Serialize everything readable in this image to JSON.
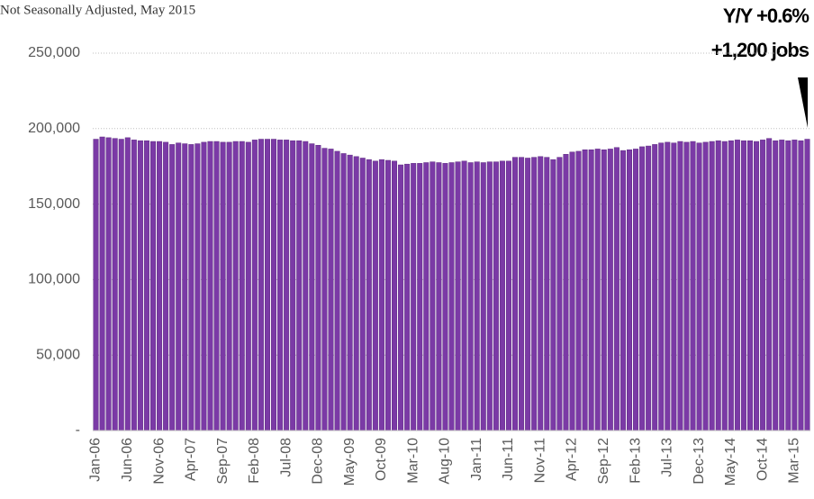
{
  "chart_data": {
    "type": "bar",
    "subtitle": "Not Seasonally Adjusted, May 2015",
    "annotations": [
      "Y/Y  +0.6%",
      "+1,200 jobs"
    ],
    "categories": [
      "Jan-06",
      null,
      null,
      null,
      null,
      "Jun-06",
      null,
      null,
      null,
      null,
      "Nov-06",
      null,
      null,
      null,
      null,
      "Apr-07",
      null,
      null,
      null,
      null,
      "Sep-07",
      null,
      null,
      null,
      null,
      "Feb-08",
      null,
      null,
      null,
      null,
      "Jul-08",
      null,
      null,
      null,
      null,
      "Dec-08",
      null,
      null,
      null,
      null,
      "May-09",
      null,
      null,
      null,
      null,
      "Oct-09",
      null,
      null,
      null,
      null,
      "Mar-10",
      null,
      null,
      null,
      null,
      "Aug-10",
      null,
      null,
      null,
      null,
      "Jan-11",
      null,
      null,
      null,
      null,
      "Jun-11",
      null,
      null,
      null,
      null,
      "Nov-11",
      null,
      null,
      null,
      null,
      "Apr-12",
      null,
      null,
      null,
      null,
      "Sep-12",
      null,
      null,
      null,
      null,
      "Feb-13",
      null,
      null,
      null,
      null,
      "Jul-13",
      null,
      null,
      null,
      null,
      "Dec-13",
      null,
      null,
      null,
      null,
      "May-14",
      null,
      null,
      null,
      null,
      "Oct-14",
      null,
      null,
      null,
      null,
      "Mar-15",
      null,
      null
    ],
    "values": [
      193000,
      194500,
      194000,
      193500,
      193000,
      194000,
      192500,
      192000,
      192000,
      191500,
      191500,
      191000,
      189500,
      190500,
      190000,
      189500,
      190000,
      191000,
      191500,
      191500,
      191000,
      191000,
      191500,
      191500,
      191000,
      192500,
      193000,
      193000,
      193000,
      192500,
      192500,
      192000,
      192000,
      191500,
      190000,
      189000,
      187000,
      186500,
      185000,
      183500,
      182500,
      181500,
      180500,
      179500,
      178500,
      179500,
      179000,
      178500,
      176000,
      176500,
      177000,
      177000,
      177500,
      178000,
      177500,
      177000,
      177500,
      178000,
      178500,
      177500,
      178000,
      177500,
      178000,
      178000,
      178500,
      178500,
      181000,
      181000,
      180500,
      181000,
      181500,
      181000,
      179500,
      181000,
      183000,
      184500,
      185000,
      186000,
      186000,
      186500,
      186000,
      186500,
      187500,
      185500,
      186000,
      186500,
      188000,
      188500,
      189500,
      190500,
      191000,
      190500,
      191500,
      191000,
      191500,
      190500,
      191000,
      191500,
      192000,
      191500,
      192000,
      192500,
      192000,
      192000,
      191500,
      192500,
      193500,
      192000,
      192500,
      192000,
      192500,
      192000,
      193000
    ],
    "color": "#7b3aa6",
    "ylim": [
      0,
      250000
    ],
    "yticks": [
      {
        "value": 0,
        "label": "-"
      },
      {
        "value": 50000,
        "label": "50,000"
      },
      {
        "value": 100000,
        "label": "100,000"
      },
      {
        "value": 150000,
        "label": "150,000"
      },
      {
        "value": 200000,
        "label": "200,000"
      },
      {
        "value": 250000,
        "label": "250,000"
      }
    ],
    "grid": true
  }
}
